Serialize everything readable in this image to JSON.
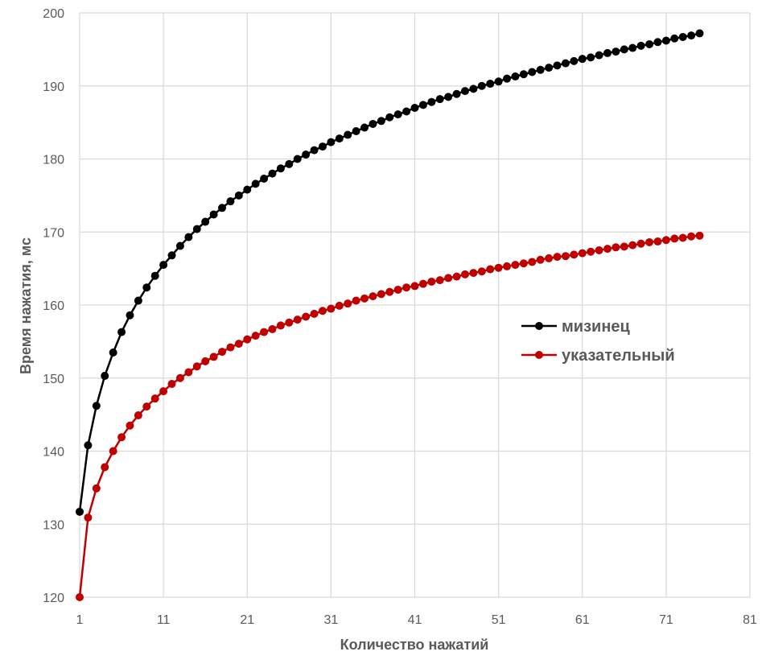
{
  "chart_data": {
    "type": "line",
    "title": "",
    "xlabel": "Количество нажатий",
    "ylabel": "Время нажатия, мс",
    "xlim": [
      1,
      81
    ],
    "ylim": [
      120,
      200
    ],
    "x_ticks": [
      "1",
      "11",
      "21",
      "31",
      "41",
      "51",
      "61",
      "71",
      "81"
    ],
    "y_ticks": [
      "120",
      "130",
      "140",
      "150",
      "160",
      "170",
      "180",
      "190",
      "200"
    ],
    "grid": true,
    "legend_position": "right-middle",
    "series": [
      {
        "name": "мизинец",
        "color": "#000000",
        "x": [
          1,
          2,
          3,
          4,
          5,
          6,
          7,
          8,
          9,
          10,
          11,
          12,
          13,
          14,
          15,
          16,
          17,
          18,
          19,
          20,
          21,
          22,
          23,
          24,
          25,
          26,
          27,
          28,
          29,
          30,
          31,
          32,
          33,
          34,
          35,
          36,
          37,
          38,
          39,
          40,
          41,
          42,
          43,
          44,
          45,
          46,
          47,
          48,
          49,
          50,
          51,
          52,
          53,
          54,
          55,
          56,
          57,
          58,
          59,
          60,
          61,
          62,
          63,
          64,
          65,
          66,
          67,
          68,
          69,
          70,
          71,
          72,
          73,
          74,
          75
        ],
        "values": [
          131.7,
          140.8,
          146.2,
          150.3,
          153.5,
          156.3,
          158.6,
          160.6,
          162.4,
          164.0,
          165.5,
          166.8,
          168.1,
          169.3,
          170.4,
          171.4,
          172.4,
          173.3,
          174.2,
          175.0,
          175.8,
          176.6,
          177.3,
          178.0,
          178.7,
          179.3,
          180.0,
          180.6,
          181.2,
          181.7,
          182.3,
          182.8,
          183.3,
          183.8,
          184.3,
          184.8,
          185.2,
          185.7,
          186.1,
          186.5,
          187.0,
          187.4,
          187.8,
          188.2,
          188.5,
          188.9,
          189.3,
          189.6,
          190.0,
          190.3,
          190.6,
          191.0,
          191.3,
          191.6,
          191.9,
          192.2,
          192.5,
          192.8,
          193.1,
          193.4,
          193.7,
          193.9,
          194.2,
          194.5,
          194.7,
          195.0,
          195.2,
          195.5,
          195.7,
          196.0,
          196.2,
          196.5,
          196.7,
          196.9,
          197.2
        ]
      },
      {
        "name": "указательный",
        "color": "#c00000",
        "x": [
          1,
          2,
          3,
          4,
          5,
          6,
          7,
          8,
          9,
          10,
          11,
          12,
          13,
          14,
          15,
          16,
          17,
          18,
          19,
          20,
          21,
          22,
          23,
          24,
          25,
          26,
          27,
          28,
          29,
          30,
          31,
          32,
          33,
          34,
          35,
          36,
          37,
          38,
          39,
          40,
          41,
          42,
          43,
          44,
          45,
          46,
          47,
          48,
          49,
          50,
          51,
          52,
          53,
          54,
          55,
          56,
          57,
          58,
          59,
          60,
          61,
          62,
          63,
          64,
          65,
          66,
          67,
          68,
          69,
          70,
          71,
          72,
          73,
          74,
          75
        ],
        "values": [
          120.0,
          130.9,
          134.9,
          137.8,
          140.0,
          141.9,
          143.5,
          144.9,
          146.1,
          147.2,
          148.2,
          149.2,
          150.0,
          150.8,
          151.6,
          152.3,
          152.9,
          153.6,
          154.2,
          154.7,
          155.3,
          155.8,
          156.3,
          156.7,
          157.2,
          157.6,
          158.0,
          158.4,
          158.8,
          159.2,
          159.5,
          159.9,
          160.2,
          160.6,
          160.9,
          161.2,
          161.5,
          161.8,
          162.1,
          162.4,
          162.6,
          162.9,
          163.2,
          163.4,
          163.7,
          163.9,
          164.2,
          164.4,
          164.6,
          164.9,
          165.1,
          165.3,
          165.5,
          165.7,
          165.9,
          166.2,
          166.4,
          166.6,
          166.7,
          166.9,
          167.1,
          167.3,
          167.5,
          167.7,
          167.9,
          168.0,
          168.2,
          168.4,
          168.6,
          168.7,
          168.9,
          169.1,
          169.2,
          169.4,
          169.5
        ]
      }
    ]
  }
}
